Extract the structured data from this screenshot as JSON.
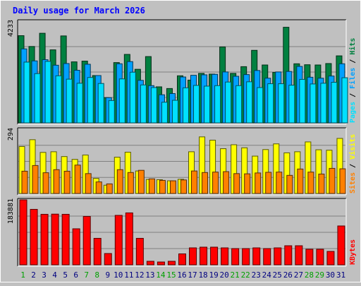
{
  "chart_data": {
    "type": "bar",
    "title": "Daily usage for March 2026",
    "x": [
      "1",
      "2",
      "3",
      "4",
      "5",
      "6",
      "7",
      "8",
      "9",
      "10",
      "11",
      "12",
      "13",
      "14",
      "15",
      "16",
      "17",
      "18",
      "19",
      "20",
      "21",
      "22",
      "23",
      "24",
      "25",
      "26",
      "27",
      "28",
      "29",
      "30",
      "31"
    ],
    "weekend_days": [
      "1",
      "7",
      "8",
      "14",
      "15",
      "21",
      "22",
      "28",
      "29"
    ],
    "panels": [
      {
        "id": "hits-files-pages",
        "ylim": [
          0,
          4233
        ],
        "scale_label": "4233",
        "axis_labels": [
          "Pages",
          "Files",
          "Hits"
        ],
        "series": [
          {
            "name": "Hits",
            "color": "#008040",
            "values": [
              3630,
              3180,
              3730,
              3040,
              3620,
              2540,
              2570,
              1970,
              1050,
              2510,
              2850,
              2230,
              2760,
              1500,
              1430,
              1960,
              1780,
              2060,
              2030,
              3160,
              2060,
              2340,
              3020,
              2410,
              2100,
              3980,
              2460,
              2420,
              2410,
              2470,
              2790
            ]
          },
          {
            "name": "Files",
            "color": "#00a0ff",
            "values": [
              3080,
              2580,
              2630,
              2400,
              2470,
              2190,
              2440,
              1970,
              1050,
              2460,
              2550,
              1770,
              1550,
              1170,
              1220,
              1910,
              1980,
              2000,
              2020,
              2120,
              1940,
              2010,
              2180,
              1860,
              2120,
              2140,
              2350,
              1900,
              1860,
              1950,
              2460
            ]
          },
          {
            "name": "Pages",
            "color": "#00e0ff",
            "values": [
              2530,
              2050,
              2560,
              1960,
              1820,
              1650,
              1890,
              1640,
              930,
              1830,
              2110,
              1580,
              1470,
              860,
              940,
              1460,
              1560,
              1530,
              1550,
              1700,
              1550,
              1710,
              1470,
              1630,
              1630,
              1570,
              1810,
              1620,
              1650,
              1690,
              1880
            ]
          }
        ]
      },
      {
        "id": "visits-sites",
        "ylim": [
          0,
          294
        ],
        "scale_label": "294",
        "axis_labels": [
          "Sites",
          "Visits"
        ],
        "series": [
          {
            "name": "Visits",
            "color": "#ffff00",
            "values": [
              215,
              246,
              188,
              191,
              169,
              156,
              176,
              69,
              38,
              166,
              189,
              103,
              64,
              63,
              58,
              65,
              191,
              259,
              244,
              205,
              223,
              209,
              171,
              201,
              227,
              186,
              191,
              236,
              200,
              198,
              252
            ]
          },
          {
            "name": "Sites",
            "color": "#ff8000",
            "values": [
              102,
              128,
              95,
              109,
              102,
              130,
              91,
              53,
              44,
              109,
              96,
              106,
              67,
              60,
              58,
              62,
              103,
              96,
              98,
              100,
              91,
              90,
              94,
              97,
              98,
              83,
              112,
              98,
              89,
              115,
              113
            ]
          }
        ]
      },
      {
        "id": "kbytes",
        "ylim": [
          0,
          183881
        ],
        "scale_label": "183881",
        "axis_labels": [
          "KBytes"
        ],
        "series": [
          {
            "name": "KBytes",
            "color": "#ff0000",
            "values": [
              183881,
              157000,
              143000,
              143500,
              143000,
              102000,
              137000,
              75000,
              32000,
              140000,
              147000,
              75000,
              10000,
              8000,
              10000,
              31000,
              48000,
              50000,
              50000,
              48000,
              46000,
              46000,
              48000,
              46000,
              48000,
              54000,
              54000,
              44000,
              44000,
              38000,
              110000
            ]
          }
        ]
      }
    ]
  },
  "colors": {
    "background": "#c0c0c0",
    "title": "#0000ff",
    "weekday_label": "#000080",
    "weekend_label": "#00a000",
    "grid": "#808080"
  }
}
